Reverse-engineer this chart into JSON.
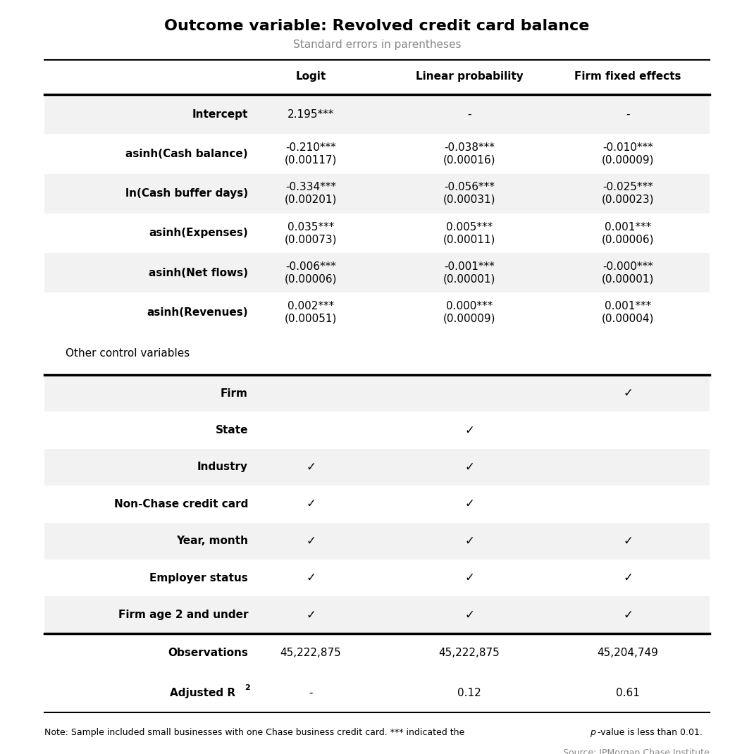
{
  "title": "Outcome variable: Revolved credit card balance",
  "subtitle": "Standard errors in parentheses",
  "col_headers": [
    "Logit",
    "Linear probability",
    "Firm fixed effects"
  ],
  "rows": [
    {
      "label": "Intercept",
      "values": [
        "2.195***",
        "-",
        "-"
      ],
      "shaded": true
    },
    {
      "label": "asinh(Cash balance)",
      "values": [
        "-0.210***\n(0.00117)",
        "-0.038***\n(0.00016)",
        "-0.010***\n(0.00009)"
      ],
      "shaded": false
    },
    {
      "label": "ln(Cash buffer days)",
      "values": [
        "-0.334***\n(0.00201)",
        "-0.056***\n(0.00031)",
        "-0.025***\n(0.00023)"
      ],
      "shaded": true
    },
    {
      "label": "asinh(Expenses)",
      "values": [
        "0.035***\n(0.00073)",
        "0.005***\n(0.00011)",
        "0.001***\n(0.00006)"
      ],
      "shaded": false
    },
    {
      "label": "asinh(Net flows)",
      "values": [
        "-0.006***\n(0.00006)",
        "-0.001***\n(0.00001)",
        "-0.000***\n(0.00001)"
      ],
      "shaded": true
    },
    {
      "label": "asinh(Revenues)",
      "values": [
        "0.002***\n(0.00051)",
        "0.000***\n(0.00009)",
        "0.001***\n(0.00004)"
      ],
      "shaded": false
    }
  ],
  "other_label": "Other control variables",
  "control_rows": [
    {
      "label": "Firm",
      "checks": [
        false,
        false,
        true
      ],
      "shaded": true
    },
    {
      "label": "State",
      "checks": [
        false,
        true,
        false
      ],
      "shaded": false
    },
    {
      "label": "Industry",
      "checks": [
        true,
        true,
        false
      ],
      "shaded": true
    },
    {
      "label": "Non-Chase credit card",
      "checks": [
        true,
        true,
        false
      ],
      "shaded": false
    },
    {
      "label": "Year, month",
      "checks": [
        true,
        true,
        true
      ],
      "shaded": true
    },
    {
      "label": "Employer status",
      "checks": [
        true,
        true,
        true
      ],
      "shaded": false
    },
    {
      "label": "Firm age 2 and under",
      "checks": [
        true,
        true,
        true
      ],
      "shaded": true
    }
  ],
  "footer_rows": [
    {
      "label": "Observations",
      "values": [
        "45,222,875",
        "45,222,875",
        "45,204,749"
      ]
    },
    {
      "label": "Adjusted R2",
      "values": [
        "-",
        "0.12",
        "0.61"
      ]
    }
  ],
  "note_before": "Note: Sample included small businesses with one Chase business credit card. *** indicated the ",
  "note_italic": "p",
  "note_after": "-value is less than 0.01.",
  "source": "Source: JPMorgan Chase Institute",
  "bg_color": "#f2f2f2",
  "title_fontsize": 16,
  "subtitle_fontsize": 11,
  "header_fontsize": 11,
  "cell_fontsize": 11,
  "note_fontsize": 9,
  "source_fontsize": 9
}
